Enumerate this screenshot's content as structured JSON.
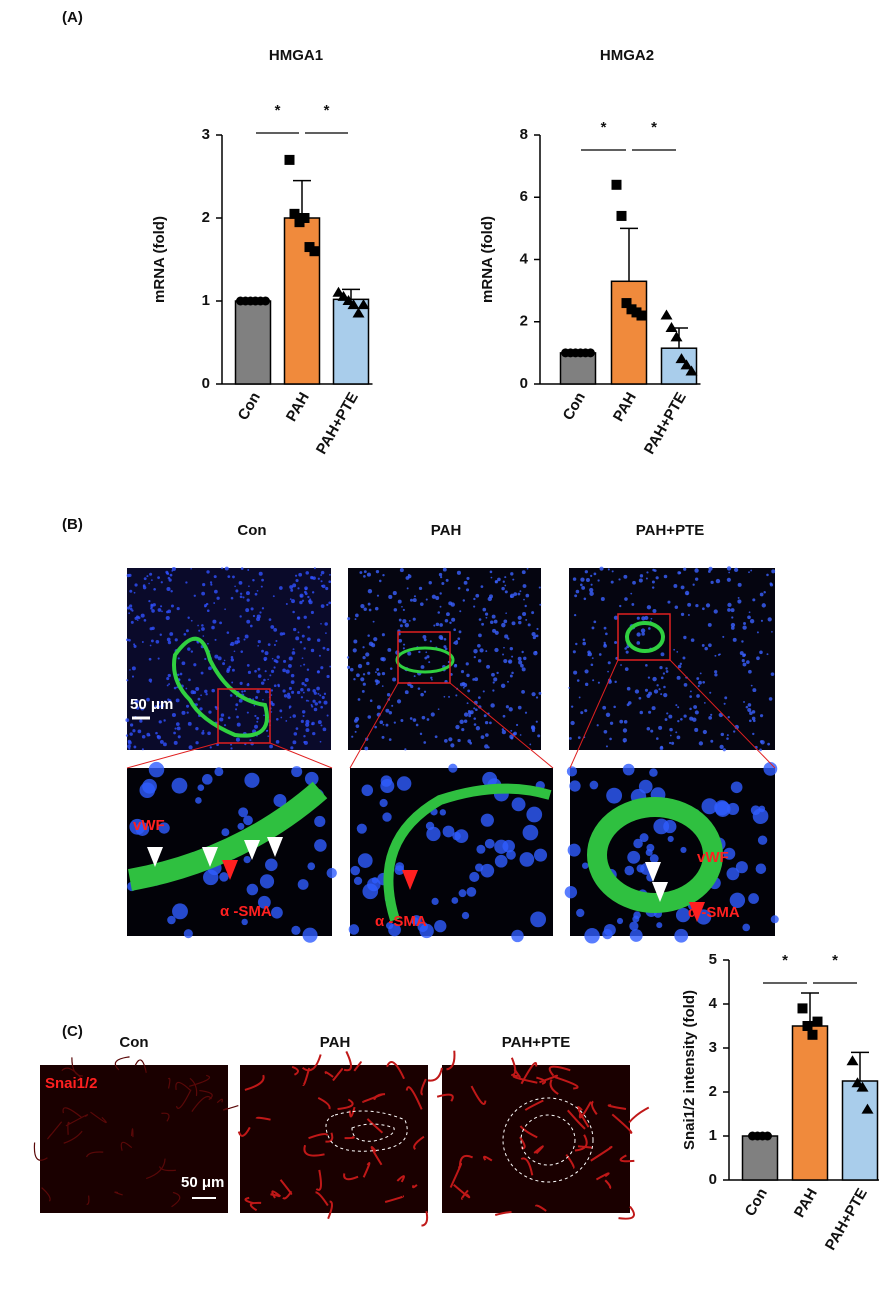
{
  "panel_labels": [
    "(A)",
    "(B)",
    "(C)"
  ],
  "image_labels": {
    "b_columns": [
      "Con",
      "PAH",
      "PAH+PTE"
    ],
    "b_scale": "50 μm",
    "b_con_marker1": "vWF",
    "b_con_marker2": "α -SMA",
    "b_pah_marker2": "α -SMA",
    "b_pte_marker1": "vWF",
    "b_pte_marker2": "α -SMA",
    "c_columns": [
      "Con",
      "PAH",
      "PAH+PTE"
    ],
    "c_stain": "Snai1/2",
    "c_scale": "50 μm"
  },
  "chart_data": [
    {
      "type": "bar",
      "title": "HMGA1",
      "ylabel": "mRNA (fold)",
      "categories": [
        "Con",
        "PAH",
        "PAH+PTE"
      ],
      "values": [
        1.0,
        2.0,
        1.02
      ],
      "errors": [
        0.02,
        0.45,
        0.12
      ],
      "points": [
        [
          1,
          1,
          1,
          1,
          1,
          1
        ],
        [
          2.7,
          2.05,
          1.95,
          2.0,
          1.65,
          1.6
        ],
        [
          1.1,
          1.05,
          1.0,
          0.95,
          0.85,
          0.95
        ]
      ],
      "colors": [
        "#808080",
        "#f08a3c",
        "#a9cdeb"
      ],
      "markers": [
        "circle",
        "square",
        "triangle"
      ],
      "ylim": [
        0,
        3
      ],
      "yticks": [
        0,
        1,
        2,
        3
      ],
      "significance": [
        "*",
        "*"
      ]
    },
    {
      "type": "bar",
      "title": "HMGA2",
      "ylabel": "mRNA (fold)",
      "categories": [
        "Con",
        "PAH",
        "PAH+PTE"
      ],
      "values": [
        1.0,
        3.3,
        1.15
      ],
      "errors": [
        0.05,
        1.7,
        0.65
      ],
      "points": [
        [
          1,
          1,
          1,
          1,
          1,
          1
        ],
        [
          6.4,
          5.4,
          2.6,
          2.4,
          2.3,
          2.2
        ],
        [
          2.2,
          1.8,
          1.5,
          0.8,
          0.6,
          0.4
        ]
      ],
      "colors": [
        "#808080",
        "#f08a3c",
        "#a9cdeb"
      ],
      "markers": [
        "circle",
        "square",
        "triangle"
      ],
      "ylim": [
        0,
        8
      ],
      "yticks": [
        0,
        2,
        4,
        6,
        8
      ],
      "significance": [
        "*",
        "*"
      ]
    },
    {
      "type": "bar",
      "ylabel": "Snai1/2 intensity (fold)",
      "categories": [
        "Con",
        "PAH",
        "PAH+PTE"
      ],
      "values": [
        1.0,
        3.5,
        2.25
      ],
      "errors": [
        0.02,
        0.75,
        0.65
      ],
      "points": [
        [
          1,
          1,
          1,
          1
        ],
        [
          3.9,
          3.5,
          3.3,
          3.6
        ],
        [
          2.7,
          2.2,
          2.1,
          1.6
        ]
      ],
      "colors": [
        "#808080",
        "#f08a3c",
        "#a9cdeb"
      ],
      "markers": [
        "circle",
        "square",
        "triangle"
      ],
      "ylim": [
        0,
        5
      ],
      "yticks": [
        0,
        1,
        2,
        3,
        4,
        5
      ],
      "significance": [
        "*",
        "*"
      ]
    }
  ]
}
